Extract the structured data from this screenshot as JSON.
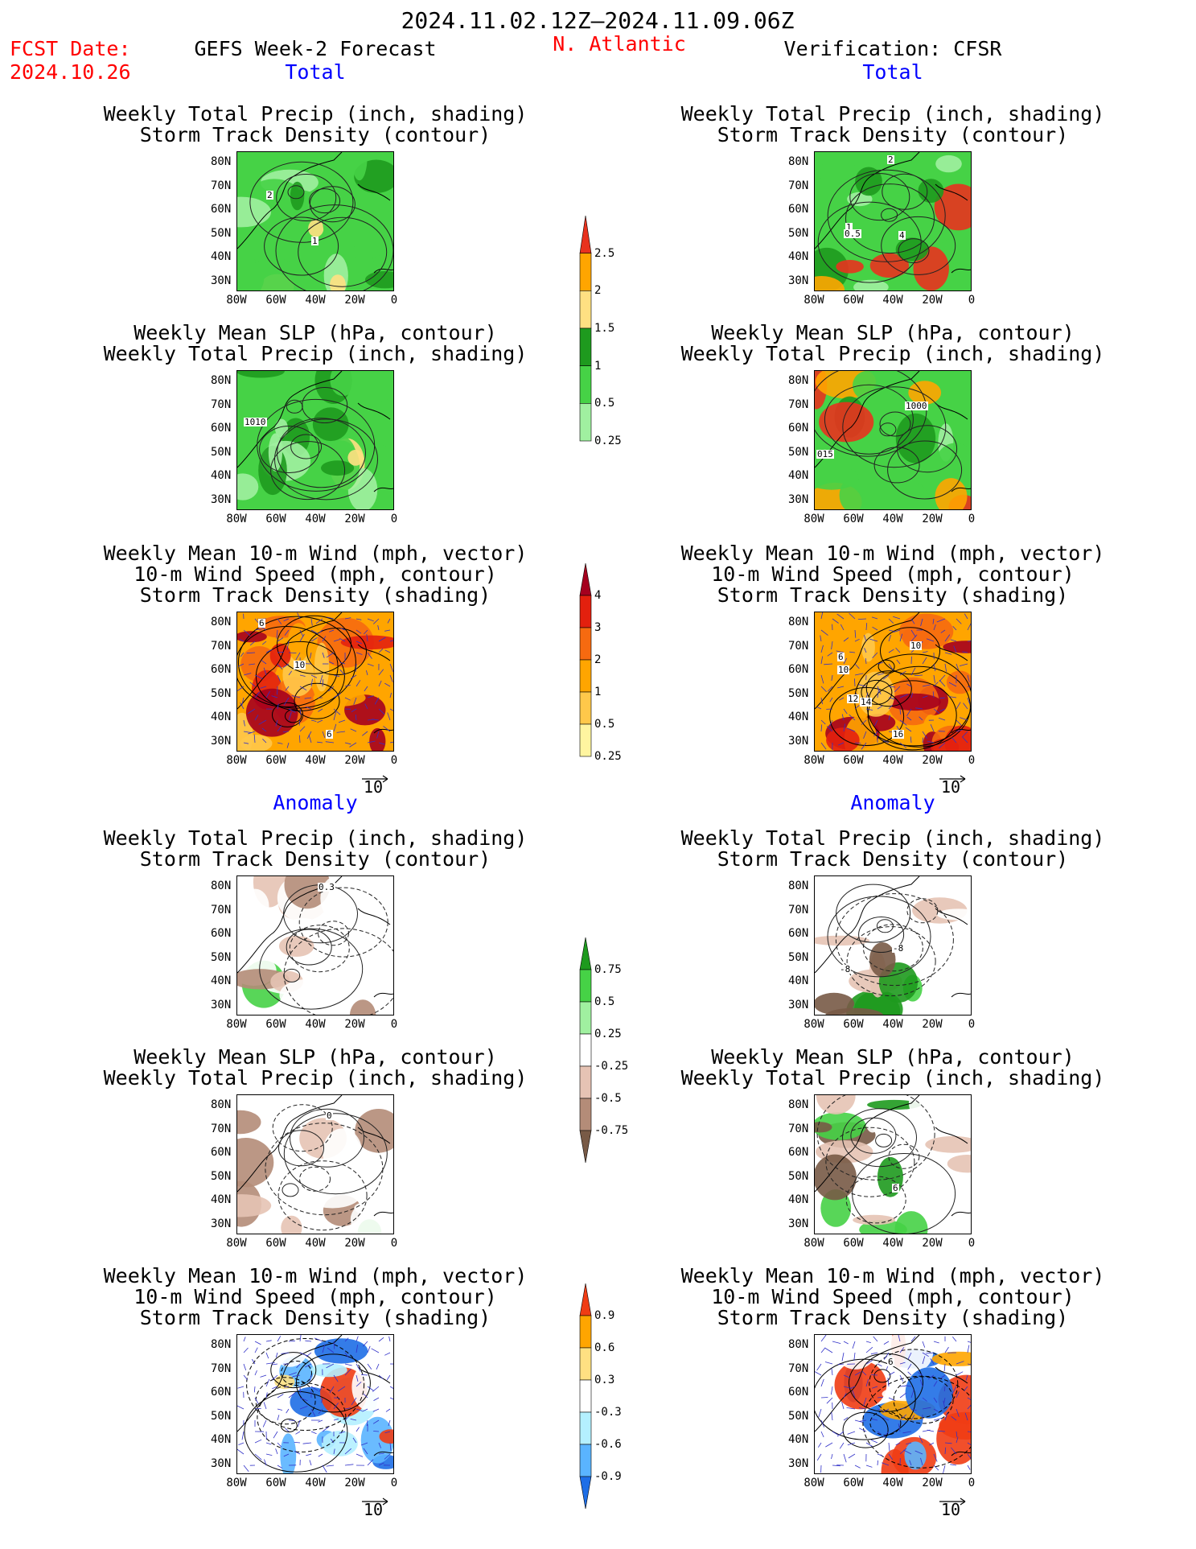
{
  "header": {
    "date_range": "2024.11.02.12Z–2024.11.09.06Z",
    "fcst_label": "FCST Date:",
    "fcst_date": "2024.10.26",
    "left_title": "GEFS Week-2 Forecast",
    "region": "N. Atlantic",
    "right_title": "Verification: CFSR",
    "total_label": "Total",
    "anomaly_label": "Anomaly"
  },
  "panel_titles": {
    "precip_track": [
      "Weekly Total Precip (inch, shading)",
      "Storm Track Density (contour)"
    ],
    "slp_precip": [
      "Weekly Mean SLP (hPa, contour)",
      "Weekly Total Precip (inch, shading)"
    ],
    "wind_track": [
      "Weekly Mean 10-m Wind (mph, vector)",
      "10-m Wind Speed (mph, contour)",
      "Storm Track Density (shading)"
    ]
  },
  "axes": {
    "lat_ticks": [
      "80N",
      "70N",
      "60N",
      "50N",
      "40N",
      "30N"
    ],
    "lon_ticks": [
      "80W",
      "60W",
      "40W",
      "20W",
      "0"
    ]
  },
  "vector_ref": "10",
  "colorbars": {
    "precip_total": {
      "labels": [
        "2.5",
        "2",
        "1.5",
        "1",
        "0.5",
        "0.25"
      ],
      "colors": [
        "#e8321e",
        "#ffa500",
        "#ffe082",
        "#1e9a1e",
        "#46d246",
        "#a0f0a0"
      ]
    },
    "track_total": {
      "labels": [
        "4",
        "3",
        "2",
        "1",
        "0.5",
        "0.25"
      ],
      "colors": [
        "#a5001e",
        "#e3200e",
        "#f66a10",
        "#ffa500",
        "#ffc84a",
        "#fff5a0"
      ]
    },
    "precip_anom": {
      "labels": [
        "0.75",
        "0.5",
        "0.25",
        "-0.25",
        "-0.5",
        "-0.75"
      ],
      "colors": [
        "#1e9a1e",
        "#46d246",
        "#a0f0a0",
        "#ffffff",
        "#e6c3b4",
        "#b48c78",
        "#785a46"
      ]
    },
    "track_anom": {
      "labels": [
        "0.9",
        "0.6",
        "0.3",
        "-0.3",
        "-0.6",
        "-0.9"
      ],
      "colors": [
        "#f03c14",
        "#ffa500",
        "#ffe082",
        "#ffffff",
        "#b4f0ff",
        "#5ab4ff",
        "#1e6ee6"
      ]
    }
  },
  "contour_labels": {
    "l1": "2",
    "l2": "1",
    "r1": "2",
    "r2": "4",
    "r3": "1",
    "r4": "0.5",
    "l3": "1010",
    "r5": "1000",
    "r6": "015",
    "l5": "10",
    "l6": "6",
    "l7": "6",
    "r7": "10",
    "r8": "10",
    "r9": "12",
    "r10": "14",
    "r11": "16",
    "r12": "6",
    "l8": "0.3",
    "l9": "0",
    "r13": "-8",
    "r14": "-8",
    "l10": "0",
    "r15": "6"
  }
}
